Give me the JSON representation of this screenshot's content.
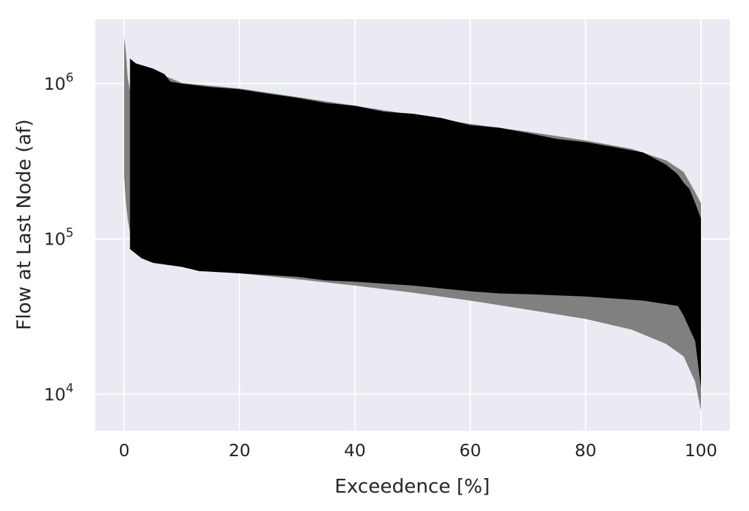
{
  "chart_data": {
    "type": "area",
    "xlabel": "Exceedence [%]",
    "ylabel": "Flow at Last Node (af)",
    "xlim": [
      -5,
      105
    ],
    "ylim": [
      5800,
      2600000
    ],
    "y_scale": "log",
    "grid": true,
    "legend": "none",
    "background_color": "#eaeaf2",
    "grid_color": "#ffffff",
    "x_ticks": [
      {
        "value": 0,
        "label": "0"
      },
      {
        "value": 20,
        "label": "20"
      },
      {
        "value": 40,
        "label": "40"
      },
      {
        "value": 60,
        "label": "60"
      },
      {
        "value": 80,
        "label": "80"
      },
      {
        "value": 100,
        "label": "100"
      }
    ],
    "y_ticks": [
      {
        "value": 10000,
        "base": "10",
        "exponent": "4"
      },
      {
        "value": 100000,
        "base": "10",
        "exponent": "5"
      },
      {
        "value": 1000000,
        "base": "10",
        "exponent": "6"
      }
    ],
    "series": [
      {
        "color": "#808080",
        "upper": [
          [
            0,
            2000000
          ],
          [
            0.3,
            1600000
          ],
          [
            0.6,
            1100000
          ],
          [
            1,
            900000
          ],
          [
            3,
            1300000
          ],
          [
            10,
            1010000
          ],
          [
            20,
            930000
          ],
          [
            30,
            820000
          ],
          [
            40,
            720000
          ],
          [
            50,
            630000
          ],
          [
            60,
            550000
          ],
          [
            70,
            490000
          ],
          [
            80,
            430000
          ],
          [
            88,
            380000
          ],
          [
            94,
            320000
          ],
          [
            97,
            270000
          ],
          [
            99,
            200000
          ],
          [
            100,
            170000
          ]
        ],
        "lower": [
          [
            0,
            250000
          ],
          [
            0.3,
            170000
          ],
          [
            0.6,
            135000
          ],
          [
            1,
            110000
          ],
          [
            3,
            78000
          ],
          [
            10,
            66000
          ],
          [
            20,
            60000
          ],
          [
            30,
            55000
          ],
          [
            40,
            50000
          ],
          [
            50,
            45000
          ],
          [
            60,
            40000
          ],
          [
            70,
            35000
          ],
          [
            80,
            30500
          ],
          [
            88,
            26000
          ],
          [
            94,
            21000
          ],
          [
            97,
            17500
          ],
          [
            99,
            12000
          ],
          [
            100,
            7800
          ]
        ]
      },
      {
        "color": "#000000",
        "upper": [
          [
            1,
            1450000
          ],
          [
            2,
            1350000
          ],
          [
            5,
            1250000
          ],
          [
            7,
            1150000
          ],
          [
            8,
            1030000
          ],
          [
            10,
            1000000
          ],
          [
            15,
            950000
          ],
          [
            20,
            920000
          ],
          [
            25,
            860000
          ],
          [
            30,
            810000
          ],
          [
            35,
            750000
          ],
          [
            40,
            720000
          ],
          [
            45,
            660000
          ],
          [
            50,
            640000
          ],
          [
            55,
            600000
          ],
          [
            60,
            540000
          ],
          [
            65,
            520000
          ],
          [
            70,
            480000
          ],
          [
            75,
            440000
          ],
          [
            80,
            420000
          ],
          [
            85,
            390000
          ],
          [
            90,
            360000
          ],
          [
            94,
            300000
          ],
          [
            96,
            260000
          ],
          [
            97,
            230000
          ],
          [
            98,
            210000
          ],
          [
            99,
            170000
          ],
          [
            100,
            135000
          ]
        ],
        "lower": [
          [
            1,
            86000
          ],
          [
            3,
            75000
          ],
          [
            5,
            70000
          ],
          [
            10,
            66000
          ],
          [
            13,
            62000
          ],
          [
            20,
            60000
          ],
          [
            30,
            57000
          ],
          [
            35,
            54000
          ],
          [
            40,
            53000
          ],
          [
            50,
            50000
          ],
          [
            60,
            46000
          ],
          [
            65,
            44500
          ],
          [
            70,
            44000
          ],
          [
            80,
            42500
          ],
          [
            90,
            40000
          ],
          [
            96,
            37000
          ],
          [
            97,
            32000
          ],
          [
            99,
            22000
          ],
          [
            100,
            11000
          ]
        ]
      }
    ]
  }
}
